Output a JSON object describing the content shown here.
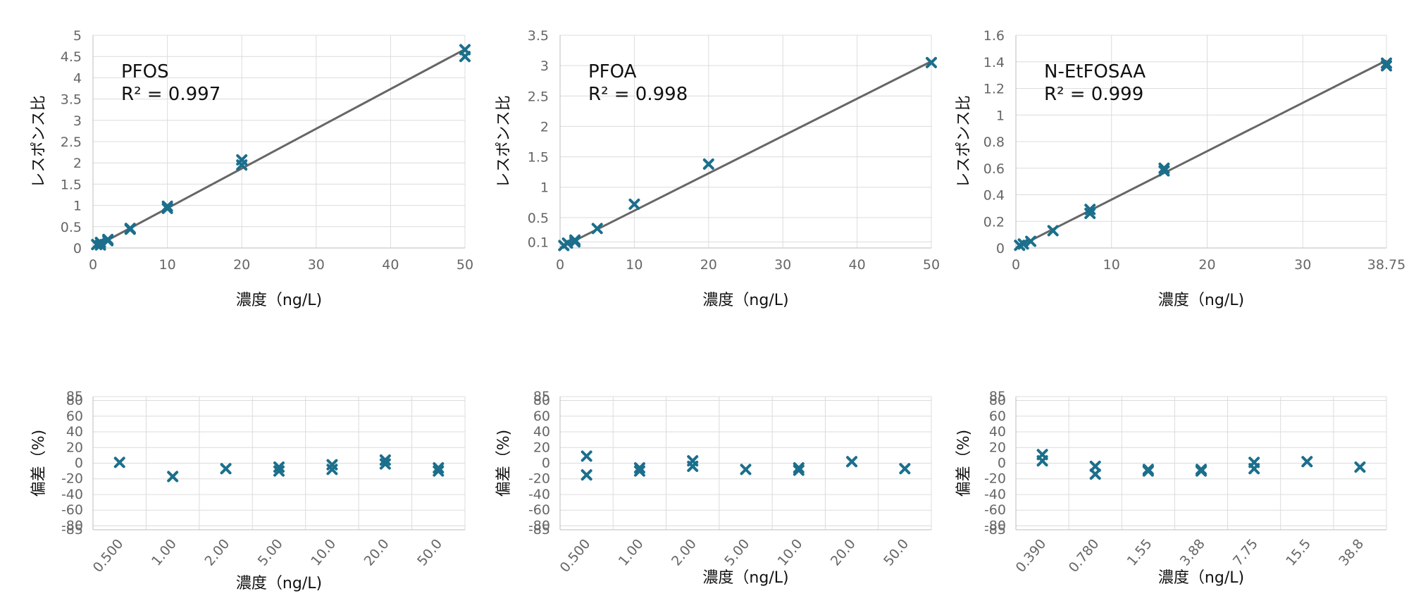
{
  "colors": {
    "marker": "#1b6f8c",
    "fit_line": "#666666",
    "grid": "#dcdcdc"
  },
  "chart_data": [
    {
      "type": "scatter",
      "annotation_title": "PFOS",
      "r2_label": "R² = 0.997",
      "xlabel": "濃度（ng/L)",
      "ylabel": "レスポンス比",
      "xlim": [
        0,
        50
      ],
      "ylim": [
        0,
        5
      ],
      "x_ticks": [
        "0",
        "10",
        "20",
        "30",
        "40",
        "50"
      ],
      "y_ticks": [
        "0",
        "0.5",
        "1",
        "1.5",
        "2",
        "2.5",
        "3",
        "3.5",
        "4",
        "4.5",
        "5"
      ],
      "grid": true,
      "marker": "x",
      "points": [
        [
          0.5,
          0.08
        ],
        [
          1,
          0.07
        ],
        [
          1,
          0.13
        ],
        [
          2,
          0.2
        ],
        [
          2,
          0.17
        ],
        [
          5,
          0.46
        ],
        [
          5,
          0.44
        ],
        [
          10,
          0.98
        ],
        [
          10,
          0.93
        ],
        [
          20,
          2.07
        ],
        [
          20,
          1.95
        ],
        [
          50,
          4.66
        ],
        [
          50,
          4.5
        ]
      ],
      "fit_line": [
        [
          0,
          0
        ],
        [
          50,
          4.67
        ]
      ]
    },
    {
      "type": "scatter",
      "annotation_title": "PFOA",
      "r2_label": "R² = 0.998",
      "xlabel": "濃度（ng/L)",
      "ylabel": "レスポンス比",
      "xlim": [
        0,
        50
      ],
      "ylim": [
        0,
        3.5
      ],
      "x_ticks": [
        "0",
        "10",
        "20",
        "30",
        "40",
        "50"
      ],
      "y_ticks": [
        "0.1",
        "0.5",
        "1",
        "1.5",
        "2",
        "2.5",
        "3",
        "3.5"
      ],
      "grid": true,
      "marker": "x",
      "points": [
        [
          0.5,
          0.04
        ],
        [
          1,
          0.08
        ],
        [
          2,
          0.13
        ],
        [
          2,
          0.1
        ],
        [
          5,
          0.32
        ],
        [
          10,
          0.72
        ],
        [
          20,
          1.38
        ],
        [
          50,
          3.05
        ]
      ],
      "fit_line": [
        [
          0,
          0.0
        ],
        [
          50,
          3.07
        ]
      ]
    },
    {
      "type": "scatter",
      "annotation_title": "N-EtFOSAA",
      "r2_label": "R² = 0.999",
      "xlabel": "濃度（ng/L)",
      "ylabel": "レスポンス比",
      "xlim": [
        0,
        38.75
      ],
      "ylim": [
        0,
        1.6
      ],
      "x_ticks": [
        "0",
        "10",
        "20",
        "30",
        "38.75"
      ],
      "y_ticks": [
        "0",
        "0.2",
        "0.4",
        "0.6",
        "0.8",
        "1",
        "1.2",
        "1.4",
        "1.6"
      ],
      "grid": true,
      "marker": "x",
      "points": [
        [
          0.39,
          0.02
        ],
        [
          0.78,
          0.03
        ],
        [
          1.55,
          0.05
        ],
        [
          3.88,
          0.13
        ],
        [
          7.75,
          0.29
        ],
        [
          7.75,
          0.26
        ],
        [
          15.5,
          0.6
        ],
        [
          15.5,
          0.58
        ],
        [
          38.75,
          1.39
        ],
        [
          38.75,
          1.37
        ]
      ],
      "fit_line": [
        [
          0,
          0
        ],
        [
          38.75,
          1.41
        ]
      ]
    },
    {
      "type": "scatter",
      "xlabel": "濃度（ng/L)",
      "ylabel": "偏差（%)",
      "categories": [
        "0.500",
        "1.00",
        "2.00",
        "5.00",
        "10.0",
        "20.0",
        "50.0"
      ],
      "ylim": [
        -85,
        85
      ],
      "y_ticks": [
        "85",
        "80",
        "60",
        "40",
        "20",
        "0",
        "-20",
        "-40",
        "-60",
        "-80",
        "-85"
      ],
      "grid": true,
      "marker": "x",
      "points": [
        [
          0,
          1
        ],
        [
          1,
          -17
        ],
        [
          2,
          -7
        ],
        [
          3,
          -5
        ],
        [
          3,
          -10
        ],
        [
          4,
          -2
        ],
        [
          4,
          -8
        ],
        [
          5,
          4
        ],
        [
          5,
          -1
        ],
        [
          6,
          -6
        ],
        [
          6,
          -10
        ]
      ]
    },
    {
      "type": "scatter",
      "xlabel": "濃度（ng/L)",
      "ylabel": "偏差（%)",
      "categories": [
        "0.500",
        "1.00",
        "2.00",
        "5.00",
        "10.0",
        "20.0",
        "50.0"
      ],
      "ylim": [
        -85,
        85
      ],
      "y_ticks": [
        "85",
        "80",
        "60",
        "40",
        "20",
        "0",
        "-20",
        "-40",
        "-60",
        "-80",
        "-85"
      ],
      "grid": true,
      "marker": "x",
      "points": [
        [
          0,
          9
        ],
        [
          0,
          -15
        ],
        [
          1,
          -6
        ],
        [
          1,
          -10
        ],
        [
          2,
          3
        ],
        [
          2,
          -4
        ],
        [
          3,
          -8
        ],
        [
          4,
          -6
        ],
        [
          4,
          -9
        ],
        [
          5,
          2
        ],
        [
          6,
          -7
        ]
      ]
    },
    {
      "type": "scatter",
      "xlabel": "濃度（ng/L)",
      "ylabel": "偏差（%)",
      "categories": [
        "0.390",
        "0.780",
        "1.55",
        "3.88",
        "7.75",
        "15.5",
        "38.8"
      ],
      "ylim": [
        -85,
        85
      ],
      "y_ticks": [
        "85",
        "80",
        "60",
        "40",
        "20",
        "0",
        "-20",
        "-40",
        "-60",
        "-80",
        "-85"
      ],
      "grid": true,
      "marker": "x",
      "points": [
        [
          0,
          11
        ],
        [
          0,
          3
        ],
        [
          1,
          -4
        ],
        [
          1,
          -14
        ],
        [
          2,
          -8
        ],
        [
          2,
          -10
        ],
        [
          3,
          -8
        ],
        [
          3,
          -10
        ],
        [
          4,
          1
        ],
        [
          4,
          -7
        ],
        [
          5,
          2
        ],
        [
          6,
          -5
        ]
      ]
    }
  ]
}
